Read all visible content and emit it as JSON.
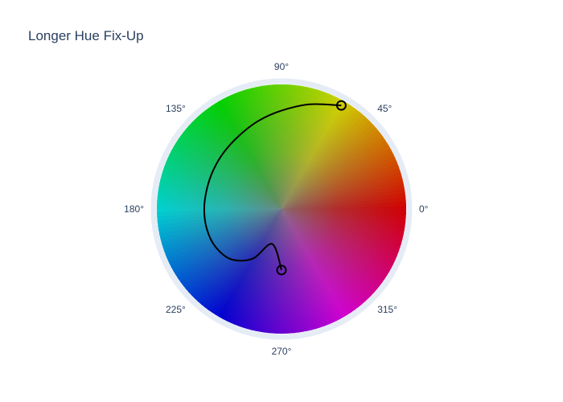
{
  "chart_data": {
    "type": "line",
    "subtype": "polar",
    "title": "Longer Hue Fix-Up",
    "angular_axis": {
      "direction": "counterclockwise",
      "rotation": 0,
      "unit": "degrees",
      "tick_values": [
        0,
        45,
        90,
        135,
        180,
        225,
        270,
        315
      ],
      "tick_labels": [
        "0°",
        "45°",
        "90°",
        "135°",
        "180°",
        "225°",
        "270°",
        "315°"
      ]
    },
    "radial_axis": {
      "range": [
        0,
        1
      ],
      "visible": false
    },
    "background": "hue-chroma color wheel (hue by angle, saturation by radius)",
    "series": [
      {
        "mode": "lines+markers(endpoints)",
        "line_color": "#000000",
        "marker_fill": "none",
        "marker_line_color": "#000000",
        "points": [
          {
            "theta": 60,
            "r": 0.96
          },
          {
            "theta": 75,
            "r": 0.87
          },
          {
            "theta": 90,
            "r": 0.79
          },
          {
            "theta": 105,
            "r": 0.73
          },
          {
            "theta": 120,
            "r": 0.68
          },
          {
            "theta": 135,
            "r": 0.65
          },
          {
            "theta": 150,
            "r": 0.63
          },
          {
            "theta": 165,
            "r": 0.62
          },
          {
            "theta": 180,
            "r": 0.62
          },
          {
            "theta": 195,
            "r": 0.62
          },
          {
            "theta": 210,
            "r": 0.61
          },
          {
            "theta": 225,
            "r": 0.57
          },
          {
            "theta": 240,
            "r": 0.46
          },
          {
            "theta": 255,
            "r": 0.29
          },
          {
            "theta": 270,
            "r": 0.49
          }
        ]
      }
    ]
  },
  "colors": {
    "title": "#2a3f5f",
    "ticks": "#2a3f5f",
    "frame": "#e5ecf6",
    "trace": "#000000"
  }
}
